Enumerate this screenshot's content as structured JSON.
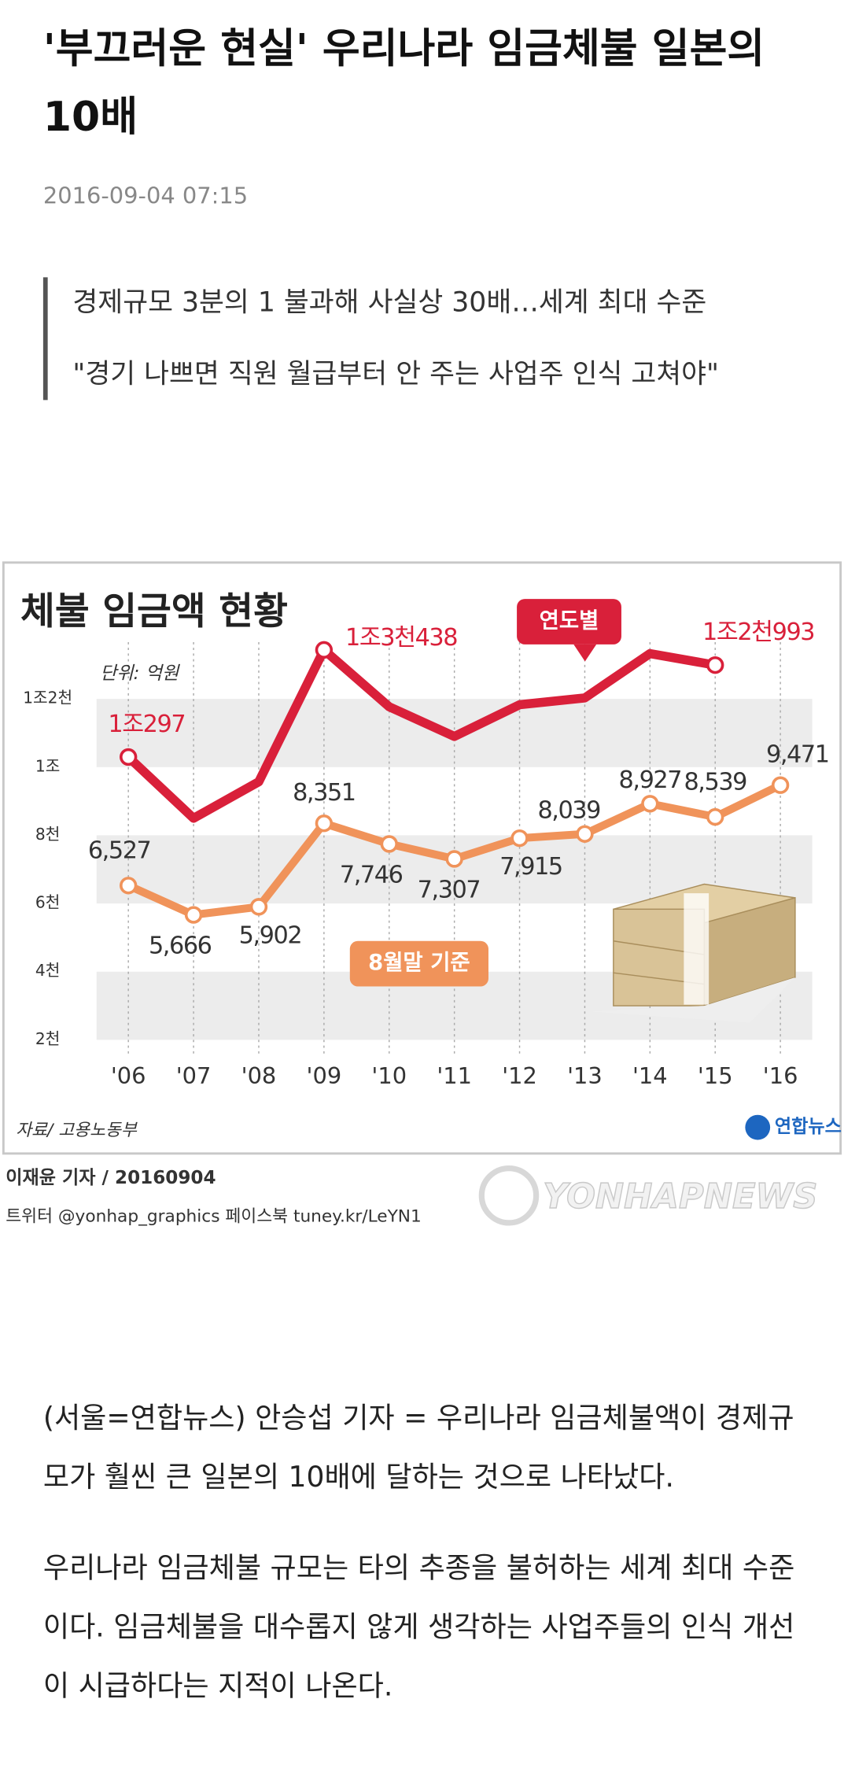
{
  "header": {
    "title": "'부끄러운 현실' 우리나라 임금체불 일본의 10배",
    "date": "2016-09-04 07:15"
  },
  "summary": [
    "경제규모 3분의 1 불과해 사실상 30배…세계 최대 수준",
    "\"경기 나쁘면 직원 월급부터 안 주는 사업주 인식 고쳐야\""
  ],
  "infographic": {
    "chart_data": {
      "type": "line",
      "title": "체불 임금액 현황",
      "unit": "단위: 억원",
      "source": "자료/ 고용노동부",
      "logo": "연합뉴스",
      "categories": [
        "'06",
        "'07",
        "'08",
        "'09",
        "'10",
        "'11",
        "'12",
        "'13",
        "'14",
        "'15",
        "'16"
      ],
      "ylim": [
        1300,
        14000
      ],
      "yticks": [
        {
          "value": 2000,
          "label": "2천"
        },
        {
          "value": 4000,
          "label": "4천"
        },
        {
          "value": 6000,
          "label": "6천"
        },
        {
          "value": 8000,
          "label": "8천"
        },
        {
          "value": 10000,
          "label": "1조"
        },
        {
          "value": 12000,
          "label": "1조2천"
        }
      ],
      "grid": "bands",
      "series": [
        {
          "name": "연도별",
          "color": "#d9203a",
          "values": [
            10297,
            8500,
            9570,
            13438,
            11770,
            10900,
            11830,
            12030,
            13330,
            12993,
            null
          ],
          "value_labels": [
            "1조297",
            null,
            null,
            "1조3천438",
            null,
            null,
            null,
            null,
            null,
            "1조2천993",
            null
          ]
        },
        {
          "name": "8월말 기준",
          "color": "#f0935a",
          "values": [
            6527,
            5666,
            5902,
            8351,
            7746,
            7307,
            7915,
            8039,
            8927,
            8539,
            9471
          ],
          "value_labels": [
            "6,527",
            "5,666",
            "5,902",
            "8,351",
            "7,746",
            "7,307",
            "7,915",
            "8,039",
            "8,927",
            "8,539",
            "9,471"
          ]
        }
      ]
    },
    "credit": "이재윤 기자 / 20160904",
    "social": "트위터 @yonhap_graphics  페이스북 tuney.kr/LeYN1",
    "watermark": "YONHAPNEWS"
  },
  "body": [
    "(서울=연합뉴스) 안승섭 기자 = 우리나라 임금체불액이 경제규모가 훨씬 큰 일본의 10배에 달하는 것으로 나타났다.",
    "우리나라 임금체불 규모는 타의 추종을 불허하는 세계 최대 수준이다. 임금체불을 대수롭지 않게 생각하는 사업주들의 인식 개선이 시급하다는 지적이 나온다."
  ]
}
